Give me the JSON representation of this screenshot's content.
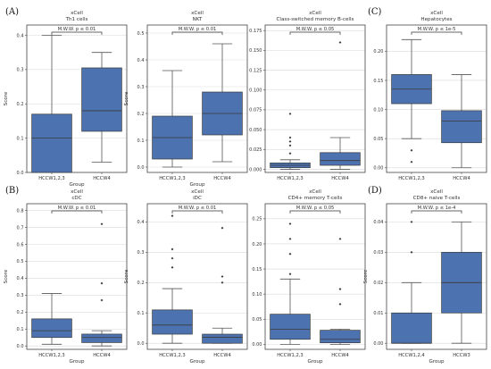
{
  "panel_letters": [
    "(A)",
    "(B)",
    "(C)",
    "(D)"
  ],
  "chart_data": [
    {
      "type": "box",
      "title": "xCell",
      "subtitle": "Th1 cells",
      "xlabel": "Group",
      "ylabel": "Score",
      "categories": [
        "HCCW1,2,3",
        "HCCW4"
      ],
      "ylim": [
        0,
        0.43
      ],
      "yticks": [
        "0.0",
        "0.1",
        "0.2",
        "0.3",
        "0.4"
      ],
      "test": "M.W.W. p ≤ 0.01",
      "boxes": [
        {
          "min": 0.0,
          "q1": 0.0,
          "median": 0.1,
          "q3": 0.17,
          "max": 0.4,
          "outliers": []
        },
        {
          "min": 0.03,
          "q1": 0.12,
          "median": 0.18,
          "q3": 0.305,
          "max": 0.35,
          "outliers": []
        }
      ]
    },
    {
      "type": "box",
      "title": "xCell",
      "subtitle": "NKT",
      "xlabel": "Group",
      "ylabel": "Score",
      "categories": [
        "HCCW1,2,3",
        "HCCW4"
      ],
      "ylim": [
        -0.02,
        0.53
      ],
      "yticks": [
        "0.0",
        "0.1",
        "0.2",
        "0.3",
        "0.4",
        "0.5"
      ],
      "test": "M.W.W. p ≤ 0.01",
      "boxes": [
        {
          "min": 0.0,
          "q1": 0.03,
          "median": 0.11,
          "q3": 0.19,
          "max": 0.36,
          "outliers": []
        },
        {
          "min": 0.02,
          "q1": 0.12,
          "median": 0.2,
          "q3": 0.28,
          "max": 0.46,
          "outliers": []
        }
      ]
    },
    {
      "type": "box",
      "title": "xCell",
      "subtitle": "Class-switched memory B-cells",
      "xlabel": "",
      "ylabel": "",
      "categories": [
        "HCCW1,2,3",
        "HCCW4"
      ],
      "ylim": [
        -0.004,
        0.182
      ],
      "yticks": [
        "0.000",
        "0.025",
        "0.050",
        "0.075",
        "0.100",
        "0.125",
        "0.150",
        "0.175"
      ],
      "test": "M.W.W. p ≤ 0.05",
      "boxes": [
        {
          "min": 0.0,
          "q1": 0.002,
          "median": 0.005,
          "q3": 0.008,
          "max": 0.012,
          "outliers": [
            0.02,
            0.03,
            0.035,
            0.04,
            0.07
          ]
        },
        {
          "min": 0.0,
          "q1": 0.005,
          "median": 0.011,
          "q3": 0.021,
          "max": 0.04,
          "outliers": [
            0.16
          ]
        }
      ]
    },
    {
      "type": "box",
      "title": "xCell",
      "subtitle": "Hepatocytes",
      "xlabel": "",
      "ylabel": "",
      "categories": [
        "HCCW1,2,3",
        "HCCW4"
      ],
      "ylim": [
        -0.008,
        0.245
      ],
      "yticks": [
        "0.00",
        "0.05",
        "0.10",
        "0.15",
        "0.20"
      ],
      "test": "M.W.W. p ≤ 1e-5",
      "boxes": [
        {
          "min": 0.05,
          "q1": 0.11,
          "median": 0.135,
          "q3": 0.16,
          "max": 0.22,
          "outliers": [
            0.01,
            0.03
          ]
        },
        {
          "min": 0.0,
          "q1": 0.043,
          "median": 0.08,
          "q3": 0.098,
          "max": 0.16,
          "outliers": []
        }
      ]
    },
    {
      "type": "box",
      "title": "xCell",
      "subtitle": "cDC",
      "xlabel": "Group",
      "ylabel": "Score",
      "categories": [
        "HCCW1,2,3",
        "HCCW4"
      ],
      "ylim": [
        -0.02,
        0.84
      ],
      "yticks": [
        "0.0",
        "0.1",
        "0.2",
        "0.3",
        "0.4",
        "0.5",
        "0.6",
        "0.7",
        "0.8"
      ],
      "test": "M.W.W. p ≤ 0.01",
      "boxes": [
        {
          "min": 0.01,
          "q1": 0.05,
          "median": 0.09,
          "q3": 0.16,
          "max": 0.31,
          "outliers": []
        },
        {
          "min": 0.0,
          "q1": 0.02,
          "median": 0.05,
          "q3": 0.07,
          "max": 0.09,
          "outliers": [
            0.27,
            0.37,
            0.72
          ]
        }
      ]
    },
    {
      "type": "box",
      "title": "xCell",
      "subtitle": "iDC",
      "xlabel": "Group",
      "ylabel": "Score",
      "categories": [
        "HCCW1,2,3",
        "HCCW4"
      ],
      "ylim": [
        -0.02,
        0.46
      ],
      "yticks": [
        "0.0",
        "0.1",
        "0.2",
        "0.3",
        "0.4"
      ],
      "test": "M.W.W. p ≤ 0.01",
      "boxes": [
        {
          "min": 0.0,
          "q1": 0.03,
          "median": 0.06,
          "q3": 0.11,
          "max": 0.18,
          "outliers": [
            0.25,
            0.28,
            0.31,
            0.42
          ]
        },
        {
          "min": 0.0,
          "q1": 0.0,
          "median": 0.02,
          "q3": 0.03,
          "max": 0.05,
          "outliers": [
            0.2,
            0.22,
            0.38
          ]
        }
      ]
    },
    {
      "type": "box",
      "title": "xCell",
      "subtitle": "CD4+ memory T-cells",
      "xlabel": "Group",
      "ylabel": "",
      "categories": [
        "HCCW1,2,3",
        "HCCW4"
      ],
      "ylim": [
        -0.01,
        0.28
      ],
      "yticks": [
        "0.00",
        "0.05",
        "0.10",
        "0.15",
        "0.20",
        "0.25"
      ],
      "test": "M.W.W. p ≤ 0.05",
      "boxes": [
        {
          "min": 0.0,
          "q1": 0.01,
          "median": 0.03,
          "q3": 0.06,
          "max": 0.13,
          "outliers": [
            0.14,
            0.18,
            0.21,
            0.24
          ]
        },
        {
          "min": 0.0,
          "q1": 0.003,
          "median": 0.01,
          "q3": 0.028,
          "max": 0.03,
          "outliers": [
            0.08,
            0.11,
            0.21
          ]
        }
      ]
    },
    {
      "type": "box",
      "title": "xCell",
      "subtitle": "CD8+ naive T-cells",
      "xlabel": "Group",
      "ylabel": "Score",
      "categories": [
        "HCCW1,2,4",
        "HCCW3"
      ],
      "ylim": [
        -0.002,
        0.046
      ],
      "yticks": [
        "0.00",
        "0.01",
        "0.02",
        "0.03",
        "0.04"
      ],
      "test": "M.W.W. p ≤ 1e-4",
      "boxes": [
        {
          "min": 0.0,
          "q1": 0.0,
          "median": 0.0,
          "q3": 0.01,
          "max": 0.02,
          "outliers": [
            0.03,
            0.04
          ]
        },
        {
          "min": 0.0,
          "q1": 0.01,
          "median": 0.02,
          "q3": 0.03,
          "max": 0.04,
          "outliers": []
        }
      ]
    }
  ]
}
